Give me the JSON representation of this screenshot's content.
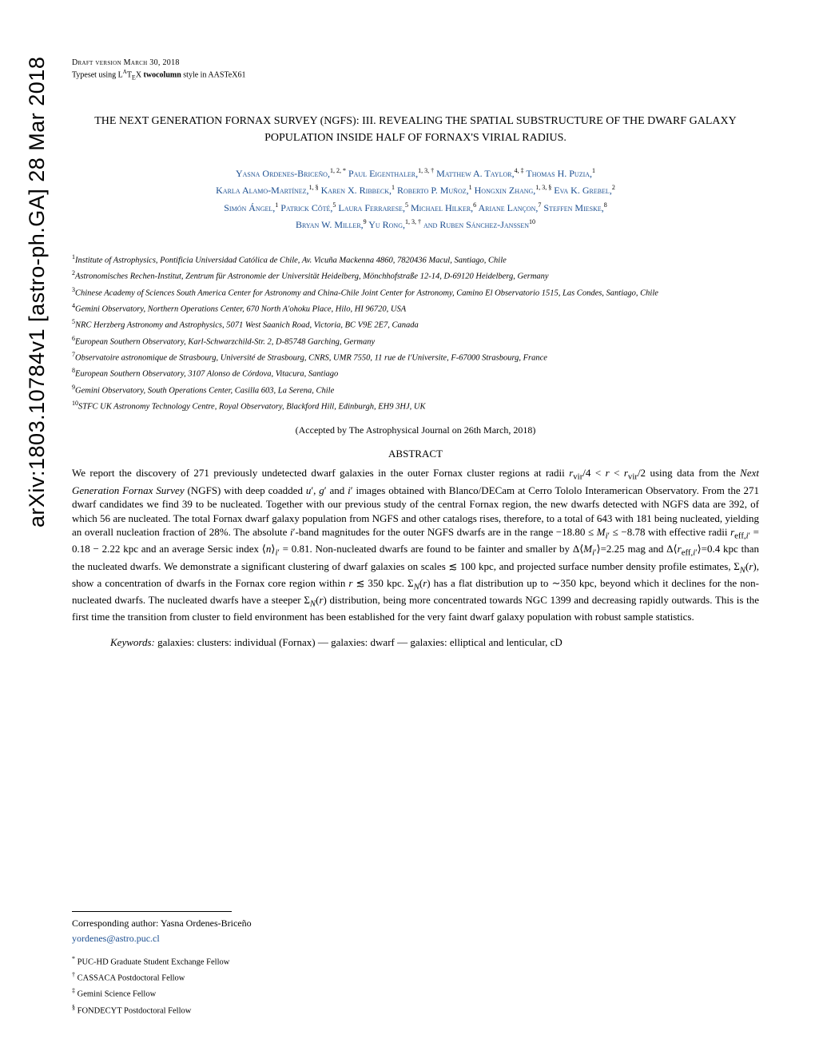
{
  "arxiv": "arXiv:1803.10784v1  [astro-ph.GA]  28 Mar 2018",
  "draft": "Draft version March 30, 2018",
  "typeset_pre": "Typeset using L",
  "typeset_a": "A",
  "typeset_tex": "T",
  "typeset_e": "E",
  "typeset_x": "X ",
  "typeset_style": "twocolumn",
  "typeset_post": " style in AASTeX61",
  "title": "THE NEXT GENERATION FORNAX SURVEY (NGFS): III. REVEALING THE SPATIAL SUBSTRUCTURE OF THE DWARF GALAXY POPULATION INSIDE HALF OF FORNAX'S VIRIAL RADIUS.",
  "authors_html": "Yasna Ordenes-Briceño,<sup>1, 2, *</sup> Paul Eigenthaler,<sup>1, 3, †</sup> Matthew A. Taylor,<sup>4, ‡</sup> Thomas H. Puzia,<sup>1</sup><br>Karla Alamo-Martínez,<sup>1, §</sup> Karen X. Ribbeck,<sup>1</sup> Roberto P. Muñoz,<sup>1</sup> Hongxin Zhang,<sup>1, 3, §</sup> Eva K. Grebel,<sup>2</sup><br>Simón Ángel,<sup>1</sup> Patrick Côté,<sup>5</sup> Laura Ferrarese,<sup>5</sup> Michael Hilker,<sup>6</sup> Ariane Lançon,<sup>7</sup> Steffen Mieske,<sup>8</sup><br>Bryan W. Miller,<sup>9</sup> Yu Rong,<sup>1, 3, †</sup> and Ruben Sánchez-Janssen<sup>10</sup>",
  "affiliations": [
    {
      "n": "1",
      "text": "Institute of Astrophysics, Pontificia Universidad Católica de Chile, Av. Vicuña Mackenna 4860, 7820436 Macul, Santiago, Chile"
    },
    {
      "n": "2",
      "text": "Astronomisches Rechen-Institut, Zentrum für Astronomie der Universität Heidelberg, Mönchhofstraße 12-14, D-69120 Heidelberg, Germany"
    },
    {
      "n": "3",
      "text": "Chinese Academy of Sciences South America Center for Astronomy and China-Chile Joint Center for Astronomy, Camino El Observatorio 1515, Las Condes, Santiago, Chile"
    },
    {
      "n": "4",
      "text": "Gemini Observatory, Northern Operations Center, 670 North A'ohoku Place, Hilo, HI 96720, USA"
    },
    {
      "n": "5",
      "text": "NRC Herzberg Astronomy and Astrophysics, 5071 West Saanich Road, Victoria, BC V9E 2E7, Canada"
    },
    {
      "n": "6",
      "text": "European Southern Observatory, Karl-Schwarzchild-Str. 2, D-85748 Garching, Germany"
    },
    {
      "n": "7",
      "text": "Observatoire astronomique de Strasbourg, Université de Strasbourg, CNRS, UMR 7550, 11 rue de l'Universite, F-67000 Strasbourg, France"
    },
    {
      "n": "8",
      "text": "European Southern Observatory, 3107 Alonso de Córdova, Vitacura, Santiago"
    },
    {
      "n": "9",
      "text": "Gemini Observatory, South Operations Center, Casilla 603, La Serena, Chile"
    },
    {
      "n": "10",
      "text": "STFC UK Astronomy Technology Centre, Royal Observatory, Blackford Hill, Edinburgh, EH9 3HJ, UK"
    }
  ],
  "accepted": "(Accepted by The Astrophysical Journal on 26th March, 2018)",
  "abstract_heading": "ABSTRACT",
  "abstract": "We report the discovery of 271 previously undetected dwarf galaxies in the outer Fornax cluster regions at radii r_vir/4 < r < r_vir/2 using data from the Next Generation Fornax Survey (NGFS) with deep coadded u′, g′ and i′ images obtained with Blanco/DECam at Cerro Tololo Interamerican Observatory. From the 271 dwarf candidates we find 39 to be nucleated. Together with our previous study of the central Fornax region, the new dwarfs detected with NGFS data are 392, of which 56 are nucleated. The total Fornax dwarf galaxy population from NGFS and other catalogs rises, therefore, to a total of 643 with 181 being nucleated, yielding an overall nucleation fraction of 28%. The absolute i′-band magnitudes for the outer NGFS dwarfs are in the range −18.80 ≤ M_i′ ≤ −8.78 with effective radii r_eff,i′ = 0.18 − 2.22 kpc and an average Sersic index ⟨n⟩_i′ = 0.81. Non-nucleated dwarfs are found to be fainter and smaller by Δ⟨M_i′⟩=2.25 mag and Δ⟨r_eff,i′⟩=0.4 kpc than the nucleated dwarfs. We demonstrate a significant clustering of dwarf galaxies on scales ≲ 100 kpc, and projected surface number density profile estimates, Σ_N(r), show a concentration of dwarfs in the Fornax core region within r ≲ 350 kpc. Σ_N(r) has a flat distribution up to ∼350 kpc, beyond which it declines for the non-nucleated dwarfs. The nucleated dwarfs have a steeper Σ_N(r) distribution, being more concentrated towards NGC 1399 and decreasing rapidly outwards. This is the first time the transition from cluster to field environment has been established for the very faint dwarf galaxy population with robust sample statistics.",
  "keywords_label": "Keywords:",
  "keywords": " galaxies: clusters: individual (Fornax) — galaxies: dwarf — galaxies: elliptical and lenticular, cD",
  "corresponding": "Corresponding author: Yasna Ordenes-Briceño",
  "email": "yordenes@astro.puc.cl",
  "footnotes": [
    {
      "sym": "*",
      "text": " PUC-HD Graduate Student Exchange Fellow"
    },
    {
      "sym": "†",
      "text": " CASSACA Postdoctoral Fellow"
    },
    {
      "sym": "‡",
      "text": " Gemini Science Fellow"
    },
    {
      "sym": "§",
      "text": " FONDECYT Postdoctoral Fellow"
    }
  ],
  "colors": {
    "link": "#1a4d8f",
    "text": "#000000",
    "bg": "#ffffff"
  }
}
